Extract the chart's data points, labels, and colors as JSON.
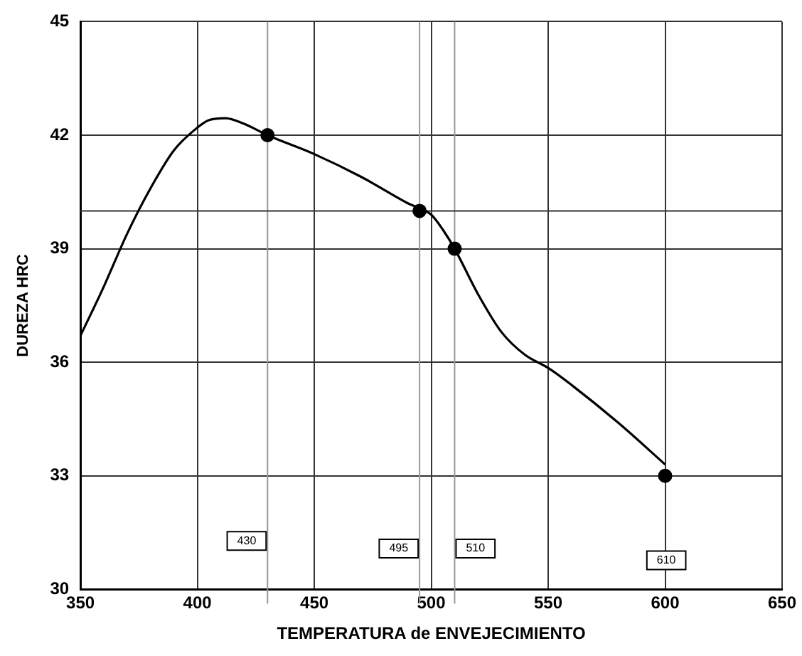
{
  "chart_data": {
    "xlabel": "TEMPERATURA de ENVEJECIMIENTO",
    "ylabel": "DUREZA HRC",
    "xlim": [
      350,
      650
    ],
    "xticks": [
      350,
      400,
      450,
      500,
      550,
      600,
      650
    ],
    "type": "line",
    "ylim": [
      30,
      45
    ],
    "yticks": [
      30,
      33,
      36,
      39,
      42,
      45
    ],
    "grid": true,
    "legend": false,
    "series": [
      {
        "type": "line",
        "color": "#000000",
        "marker": "none",
        "x": [
          350,
          360,
          370,
          380,
          390,
          400,
          405,
          412,
          420,
          430,
          450,
          470,
          490,
          500,
          505,
          510,
          520,
          530,
          540,
          550,
          560,
          580,
          600
        ],
        "values": [
          36.7,
          38.0,
          39.4,
          40.6,
          41.6,
          42.2,
          42.4,
          42.45,
          42.3,
          42,
          41.5,
          40.9,
          40.2,
          39.9,
          39.5,
          39,
          37.8,
          36.8,
          36.2,
          35.85,
          35.4,
          34.4,
          33.3
        ]
      },
      {
        "type": "scatter",
        "color": "#000000",
        "marker": "circle",
        "x": [
          430,
          495,
          510,
          600
        ],
        "values": [
          42,
          40,
          39,
          33
        ]
      }
    ],
    "ref_lines": [
      {
        "axis": "x",
        "value": 430,
        "color": "#999999"
      },
      {
        "axis": "x",
        "value": 495,
        "color": "#999999"
      },
      {
        "axis": "x",
        "value": 510,
        "color": "#999999"
      },
      {
        "axis": "y",
        "value": 40,
        "color": "#333333"
      }
    ],
    "annotations": [
      {
        "text": "430",
        "x": 430,
        "y": 31.3
      },
      {
        "text": "495",
        "x": 495,
        "y": 31.1
      },
      {
        "text": "510",
        "x": 510,
        "y": 31.1
      },
      "610"
    ]
  }
}
